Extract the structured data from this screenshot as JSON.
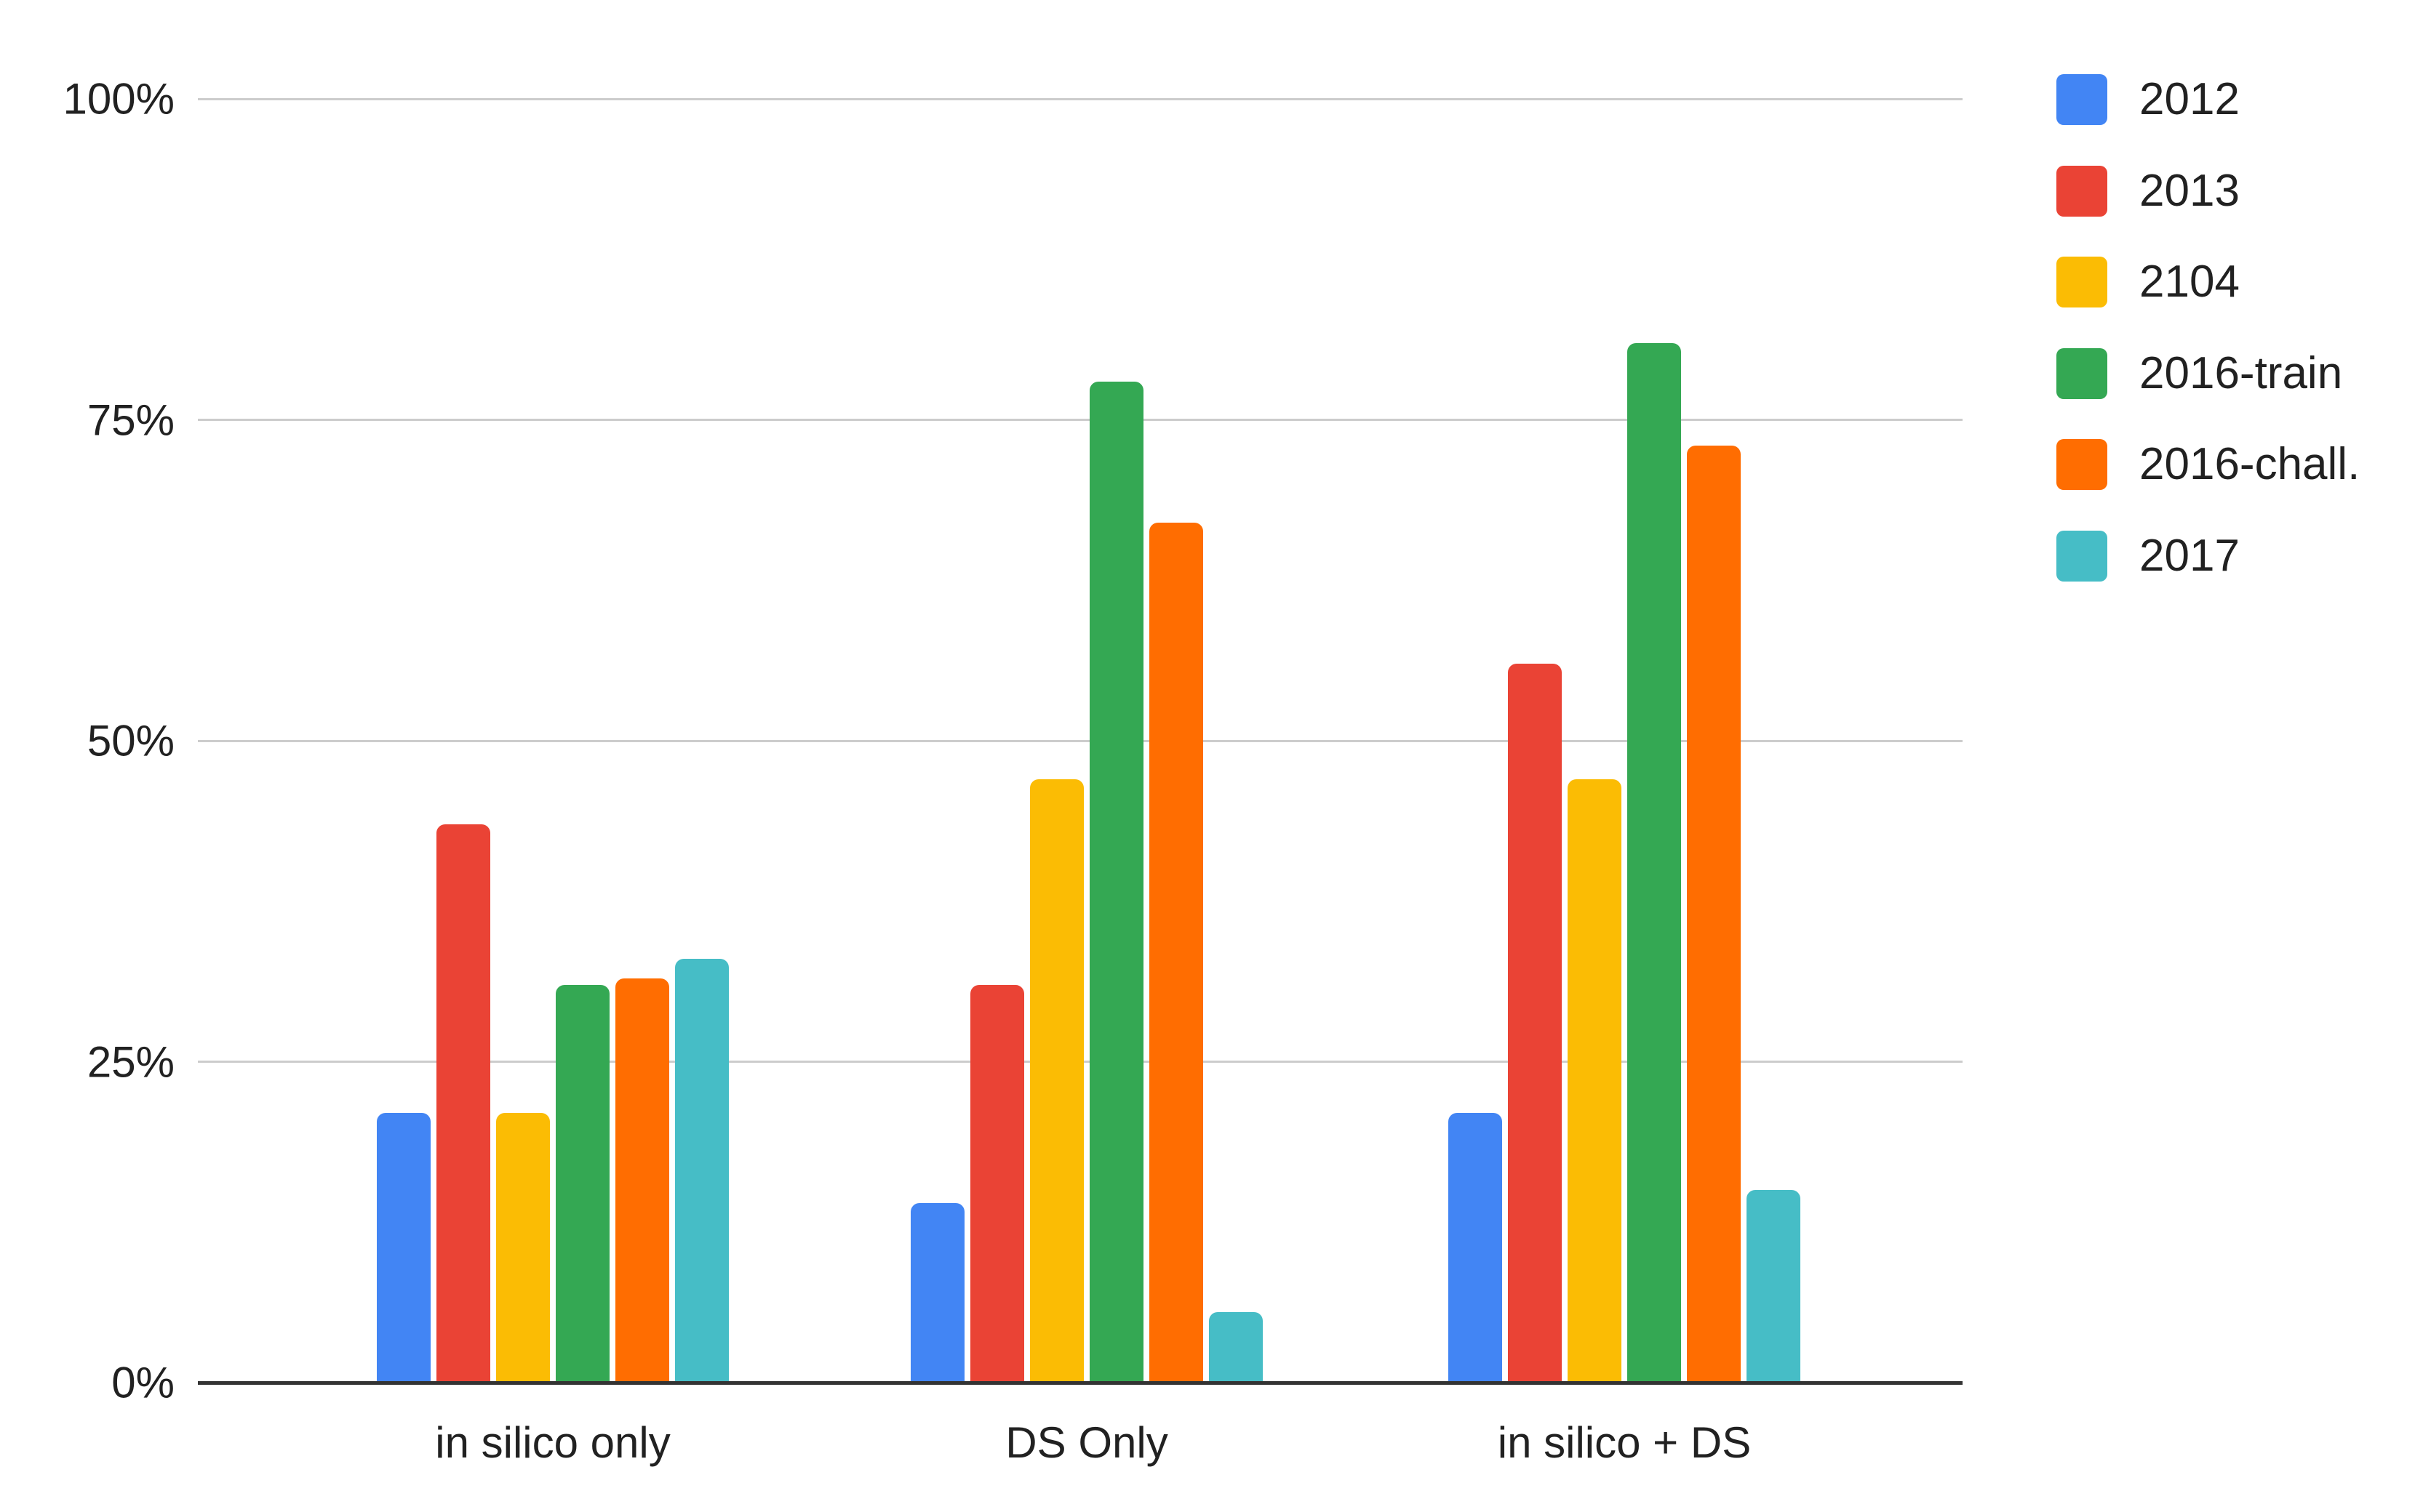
{
  "chart_data": {
    "type": "bar",
    "title": "",
    "subtitle": "",
    "xlabel": "",
    "ylabel": "",
    "categories": [
      "in silico only",
      "DS Only",
      "in silico + DS"
    ],
    "series": [
      {
        "name": "2012",
        "color": "#4285F4",
        "values": [
          21,
          14,
          21
        ]
      },
      {
        "name": "2013",
        "color": "#EA4335",
        "values": [
          43.5,
          31,
          56
        ]
      },
      {
        "name": "2104",
        "color": "#FBBC04",
        "values": [
          21,
          47,
          47
        ]
      },
      {
        "name": "2016-train",
        "color": "#34A853",
        "values": [
          31,
          78,
          81
        ]
      },
      {
        "name": "2016-chall.",
        "color": "#FF6D01",
        "values": [
          31.5,
          67,
          73
        ]
      },
      {
        "name": "2017",
        "color": "#46BDC6",
        "values": [
          33,
          5.5,
          15
        ]
      }
    ],
    "ylim": [
      0,
      100
    ],
    "yticks": [
      {
        "label": "0%",
        "value": 0
      },
      {
        "label": "25%",
        "value": 25
      },
      {
        "label": "50%",
        "value": 50
      },
      {
        "label": "75%",
        "value": 75
      },
      {
        "label": "100%",
        "value": 100
      }
    ],
    "grid": true,
    "legend_position": "right"
  },
  "colors": {
    "background": "#ffffff",
    "gridline": "#cccccc",
    "axis_line": "#333333",
    "label_text": "#212121"
  }
}
